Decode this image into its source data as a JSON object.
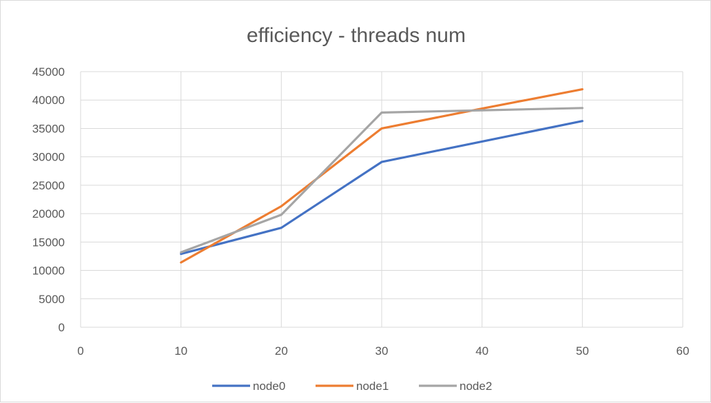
{
  "chart_data": {
    "type": "line",
    "title": "efficiency - threads num",
    "xlabel": "",
    "ylabel": "",
    "xlim": [
      0,
      60
    ],
    "ylim": [
      0,
      45000
    ],
    "x_ticks": [
      "0",
      "10",
      "20",
      "30",
      "40",
      "50",
      "60"
    ],
    "y_ticks": [
      "0",
      "5000",
      "10000",
      "15000",
      "20000",
      "25000",
      "30000",
      "35000",
      "40000",
      "45000"
    ],
    "grid": true,
    "legend_position": "bottom",
    "x": [
      10,
      20,
      30,
      40,
      50
    ],
    "series": [
      {
        "name": "node0",
        "color": "#4472C4",
        "values": [
          12900,
          17500,
          29100,
          32700,
          36300
        ]
      },
      {
        "name": "node1",
        "color": "#ED7D31",
        "values": [
          11400,
          21300,
          35000,
          38500,
          41900
        ]
      },
      {
        "name": "node2",
        "color": "#A5A5A5",
        "values": [
          13200,
          19800,
          37800,
          38200,
          38600
        ]
      }
    ]
  }
}
